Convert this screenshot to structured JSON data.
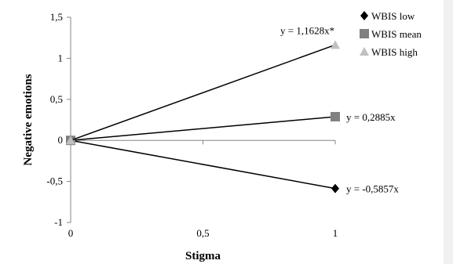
{
  "chart_data": {
    "type": "line",
    "xlabel": "Stigma",
    "ylabel": "Negative emotions",
    "xlim": [
      0,
      1
    ],
    "ylim": [
      -1,
      1.5
    ],
    "x_ticks": [
      "0",
      "0,5",
      "1"
    ],
    "x_tick_values": [
      0,
      0.5,
      1
    ],
    "y_ticks": [
      "1,5",
      "1",
      "0,5",
      "0",
      "-0,5",
      "-1"
    ],
    "y_tick_values": [
      1.5,
      1,
      0.5,
      0,
      -0.5,
      -1
    ],
    "grid": false,
    "legend_position": "top-right",
    "series": [
      {
        "name": "WBIS low",
        "marker": "diamond",
        "color": "#000000",
        "x": [
          0,
          1
        ],
        "y": [
          0,
          -0.5857
        ],
        "equation": "y = -0,5857x"
      },
      {
        "name": "WBIS mean",
        "marker": "square",
        "color": "#808080",
        "x": [
          0,
          1
        ],
        "y": [
          0,
          0.2885
        ],
        "equation": "y = 0,2885x"
      },
      {
        "name": "WBIS high",
        "marker": "triangle",
        "color": "#c0c0c0",
        "x": [
          0,
          1
        ],
        "y": [
          0,
          1.1628
        ],
        "equation": "y = 1,1628x*"
      }
    ]
  }
}
